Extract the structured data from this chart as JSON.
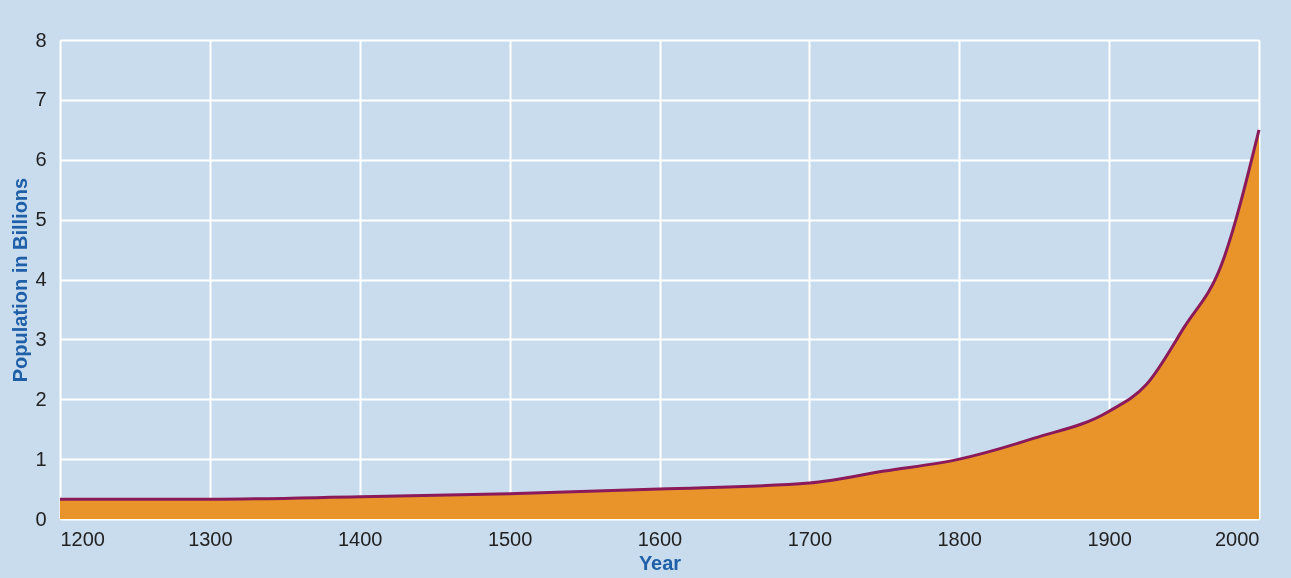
{
  "chart_data": {
    "type": "area",
    "xlabel": "Year",
    "ylabel": "Population in Billions",
    "x": [
      1200,
      1300,
      1400,
      1500,
      1600,
      1700,
      1750,
      1800,
      1850,
      1900,
      1925,
      1950,
      1975,
      2000
    ],
    "series": [
      {
        "color": "#e8942a",
        "values": [
          0.33,
          0.33,
          0.37,
          0.42,
          0.5,
          0.6,
          0.8,
          1.0,
          1.35,
          1.8,
          2.25,
          3.2,
          4.25,
          6.5
        ]
      }
    ],
    "xlim": [
      1200,
      2000
    ],
    "xticks": [
      1200,
      1300,
      1400,
      1500,
      1600,
      1700,
      1800,
      1900,
      2000
    ],
    "ylim": [
      0,
      8
    ],
    "yticks": [
      0,
      1,
      2,
      3,
      4,
      5,
      6,
      7,
      8
    ],
    "grid": true
  }
}
